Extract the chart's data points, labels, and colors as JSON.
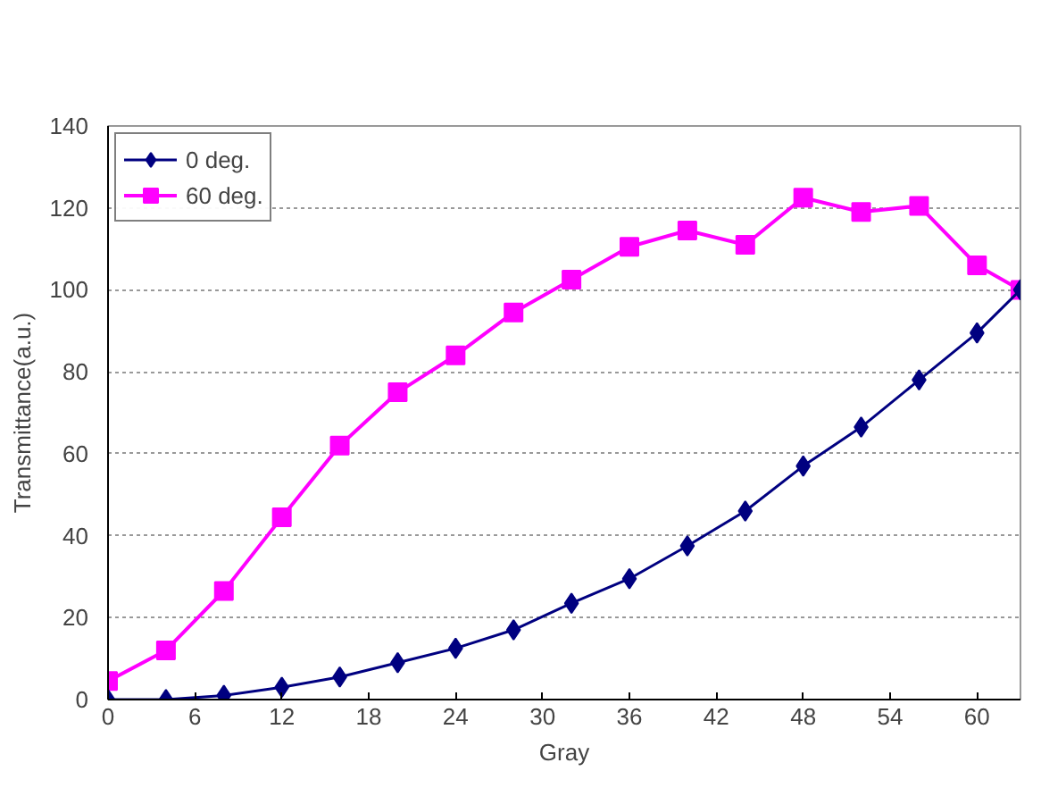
{
  "chart_data": {
    "type": "line",
    "xlabel": "Gray",
    "ylabel": "Transmittance(a.u.)",
    "x": [
      0,
      4,
      8,
      12,
      16,
      20,
      24,
      28,
      32,
      36,
      40,
      44,
      48,
      52,
      56,
      60,
      63
    ],
    "series": [
      {
        "name": "0 deg.",
        "color": "#000080",
        "marker": "diamond",
        "values": [
          0,
          0,
          1,
          3,
          5.5,
          9,
          12.5,
          17,
          23.5,
          29.5,
          37.5,
          46,
          57,
          66.5,
          78,
          89.5,
          100
        ]
      },
      {
        "name": "60 deg.",
        "color": "#ff00ff",
        "marker": "square",
        "values": [
          4.5,
          12,
          26.5,
          44.5,
          62,
          75,
          84,
          94.5,
          102.5,
          110.5,
          114.5,
          111,
          122.5,
          119,
          120.5,
          106,
          100
        ]
      }
    ],
    "xlim": [
      0,
      63
    ],
    "xticks": [
      0,
      6,
      12,
      18,
      24,
      30,
      36,
      42,
      48,
      54,
      60
    ],
    "ylim": [
      0,
      140
    ],
    "yticks": [
      0,
      20,
      40,
      60,
      80,
      100,
      120,
      140
    ],
    "grid": "y",
    "legend": "top left",
    "line_style": "solid"
  }
}
